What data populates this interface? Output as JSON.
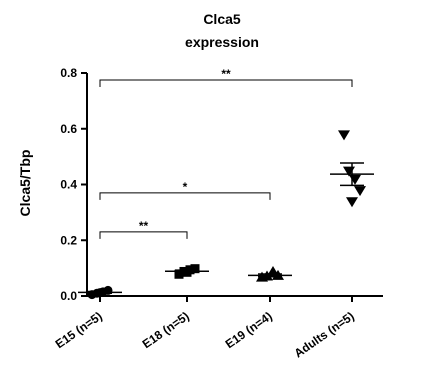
{
  "chart_data": {
    "type": "scatter",
    "title": [
      "Clca5",
      "expression"
    ],
    "ylabel": "Clca5/Tbp",
    "xlabel": "",
    "ylim": [
      0,
      0.8
    ],
    "yticks": [
      "0.0",
      "0.2",
      "0.4",
      "0.6",
      "0.8"
    ],
    "ytick_values": [
      0,
      0.2,
      0.4,
      0.6,
      0.8
    ],
    "grid": false,
    "categories": [
      "E15 (n=5)",
      "E18 (n=5)",
      "E19 (n=4)",
      "Adults (n=5)"
    ],
    "groups": [
      {
        "name": "E15 (n=5)",
        "marker": "circle",
        "points": [
          0.005,
          0.01,
          0.015,
          0.02,
          0.012
        ],
        "mean": 0.013,
        "sem": 0.003
      },
      {
        "name": "E18 (n=5)",
        "marker": "square",
        "points": [
          0.078,
          0.088,
          0.094,
          0.098,
          0.085
        ],
        "mean": 0.089,
        "sem": 0.004
      },
      {
        "name": "E19 (n=4)",
        "marker": "triangle-up",
        "points": [
          0.066,
          0.07,
          0.086,
          0.072
        ],
        "mean": 0.074,
        "sem": 0.005
      },
      {
        "name": "Adults (n=5)",
        "marker": "triangle-down",
        "points": [
          0.58,
          0.45,
          0.42,
          0.38,
          0.34
        ],
        "mean": 0.437,
        "sem": 0.04
      }
    ],
    "significance": [
      {
        "from": 0,
        "to": 3,
        "y": 0.775,
        "label": "**"
      },
      {
        "from": 0,
        "to": 2,
        "y": 0.37,
        "label": "*"
      },
      {
        "from": 0,
        "to": 1,
        "y": 0.23,
        "label": "**"
      }
    ]
  }
}
